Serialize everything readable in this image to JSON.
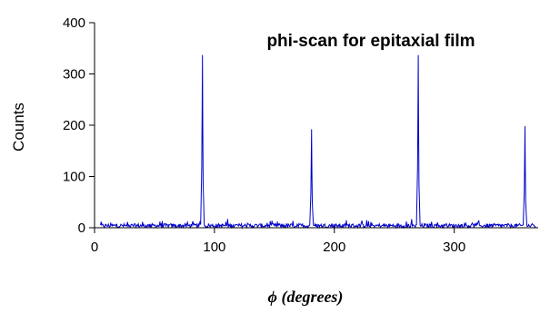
{
  "chart_data": {
    "type": "line",
    "title": "phi-scan for epitaxial film",
    "xlabel": "ϕ (degrees)",
    "ylabel": "Counts",
    "xlim": [
      0,
      370
    ],
    "ylim": [
      0,
      400
    ],
    "xticks": [
      0,
      100,
      200,
      300
    ],
    "yticks": [
      0,
      100,
      200,
      300,
      400
    ],
    "grid": false,
    "series_color": "#0000cc",
    "baseline_noise_level": 4,
    "peaks": [
      {
        "x": 90,
        "y": 337
      },
      {
        "x": 181,
        "y": 192
      },
      {
        "x": 270,
        "y": 337
      },
      {
        "x": 359,
        "y": 198
      }
    ]
  }
}
